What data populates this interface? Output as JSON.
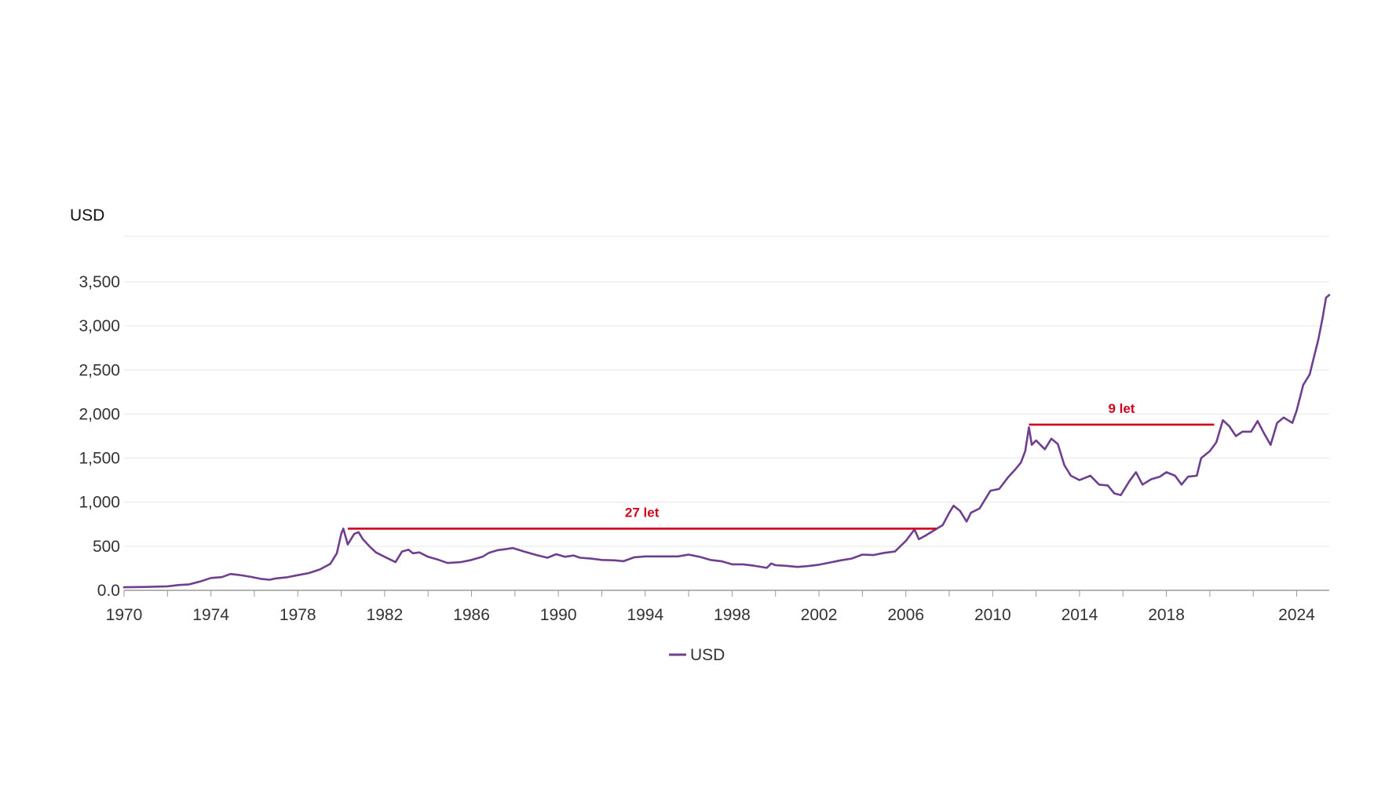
{
  "chart_data": {
    "type": "line",
    "y_unit_label": "USD",
    "ylim": [
      0,
      3500
    ],
    "y_ticks": [
      0,
      500,
      1000,
      1500,
      2000,
      2500,
      3000,
      3500
    ],
    "y_tick_labels": [
      "0.0",
      "500",
      "1,000",
      "1,500",
      "2,000",
      "2,500",
      "3,000",
      "3,500"
    ],
    "xlim": [
      1970,
      2025.5
    ],
    "x_ticks": [
      1970,
      1974,
      1978,
      1982,
      1986,
      1990,
      1994,
      1998,
      2002,
      2006,
      2010,
      2014,
      2018,
      2024
    ],
    "x_tick_labels": [
      "1970",
      "1974",
      "1978",
      "1982",
      "1986",
      "1990",
      "1994",
      "1998",
      "2002",
      "2006",
      "2010",
      "2014",
      "2018",
      "2024"
    ],
    "grid": true,
    "legend_position": "bottom-center",
    "series": [
      {
        "name": "USD",
        "color": "#6f3f8f",
        "points": [
          [
            1970.0,
            35
          ],
          [
            1971.0,
            38
          ],
          [
            1972.0,
            45
          ],
          [
            1972.5,
            60
          ],
          [
            1973.0,
            68
          ],
          [
            1973.5,
            100
          ],
          [
            1974.0,
            140
          ],
          [
            1974.5,
            150
          ],
          [
            1974.9,
            185
          ],
          [
            1975.3,
            175
          ],
          [
            1975.8,
            155
          ],
          [
            1976.3,
            130
          ],
          [
            1976.7,
            120
          ],
          [
            1977.0,
            135
          ],
          [
            1977.5,
            148
          ],
          [
            1978.0,
            172
          ],
          [
            1978.5,
            195
          ],
          [
            1979.0,
            235
          ],
          [
            1979.5,
            300
          ],
          [
            1979.8,
            420
          ],
          [
            1980.0,
            640
          ],
          [
            1980.1,
            700
          ],
          [
            1980.3,
            520
          ],
          [
            1980.6,
            640
          ],
          [
            1980.8,
            660
          ],
          [
            1981.0,
            580
          ],
          [
            1981.3,
            500
          ],
          [
            1981.6,
            430
          ],
          [
            1982.0,
            380
          ],
          [
            1982.5,
            320
          ],
          [
            1982.8,
            440
          ],
          [
            1983.1,
            460
          ],
          [
            1983.3,
            420
          ],
          [
            1983.6,
            430
          ],
          [
            1984.0,
            380
          ],
          [
            1984.5,
            345
          ],
          [
            1984.9,
            310
          ],
          [
            1985.5,
            320
          ],
          [
            1986.0,
            345
          ],
          [
            1986.5,
            380
          ],
          [
            1986.8,
            425
          ],
          [
            1987.2,
            455
          ],
          [
            1987.5,
            465
          ],
          [
            1987.9,
            480
          ],
          [
            1988.5,
            435
          ],
          [
            1989.0,
            400
          ],
          [
            1989.5,
            370
          ],
          [
            1989.9,
            410
          ],
          [
            1990.3,
            380
          ],
          [
            1990.7,
            395
          ],
          [
            1991.0,
            370
          ],
          [
            1991.5,
            360
          ],
          [
            1992.0,
            345
          ],
          [
            1992.6,
            340
          ],
          [
            1993.0,
            330
          ],
          [
            1993.5,
            375
          ],
          [
            1994.0,
            385
          ],
          [
            1994.5,
            385
          ],
          [
            1995.0,
            385
          ],
          [
            1995.5,
            385
          ],
          [
            1996.0,
            405
          ],
          [
            1996.5,
            380
          ],
          [
            1997.0,
            345
          ],
          [
            1997.5,
            330
          ],
          [
            1998.0,
            295
          ],
          [
            1998.5,
            295
          ],
          [
            1999.0,
            280
          ],
          [
            1999.6,
            255
          ],
          [
            1999.8,
            305
          ],
          [
            2000.0,
            285
          ],
          [
            2000.5,
            278
          ],
          [
            2001.0,
            265
          ],
          [
            2001.5,
            275
          ],
          [
            2002.0,
            290
          ],
          [
            2002.5,
            315
          ],
          [
            2003.0,
            340
          ],
          [
            2003.5,
            360
          ],
          [
            2004.0,
            405
          ],
          [
            2004.5,
            400
          ],
          [
            2005.0,
            425
          ],
          [
            2005.5,
            440
          ],
          [
            2006.0,
            560
          ],
          [
            2006.4,
            690
          ],
          [
            2006.6,
            580
          ],
          [
            2006.9,
            620
          ],
          [
            2007.3,
            680
          ],
          [
            2007.7,
            740
          ],
          [
            2008.0,
            880
          ],
          [
            2008.2,
            960
          ],
          [
            2008.5,
            900
          ],
          [
            2008.8,
            780
          ],
          [
            2009.0,
            880
          ],
          [
            2009.4,
            930
          ],
          [
            2009.9,
            1130
          ],
          [
            2010.3,
            1150
          ],
          [
            2010.7,
            1280
          ],
          [
            2011.0,
            1360
          ],
          [
            2011.3,
            1450
          ],
          [
            2011.5,
            1580
          ],
          [
            2011.67,
            1850
          ],
          [
            2011.8,
            1650
          ],
          [
            2012.0,
            1700
          ],
          [
            2012.4,
            1600
          ],
          [
            2012.7,
            1720
          ],
          [
            2013.0,
            1660
          ],
          [
            2013.3,
            1420
          ],
          [
            2013.6,
            1300
          ],
          [
            2014.0,
            1250
          ],
          [
            2014.5,
            1300
          ],
          [
            2014.9,
            1200
          ],
          [
            2015.3,
            1190
          ],
          [
            2015.6,
            1100
          ],
          [
            2015.9,
            1080
          ],
          [
            2016.3,
            1240
          ],
          [
            2016.6,
            1340
          ],
          [
            2016.9,
            1200
          ],
          [
            2017.3,
            1260
          ],
          [
            2017.7,
            1290
          ],
          [
            2018.0,
            1340
          ],
          [
            2018.4,
            1300
          ],
          [
            2018.7,
            1200
          ],
          [
            2019.0,
            1290
          ],
          [
            2019.4,
            1300
          ],
          [
            2019.6,
            1500
          ],
          [
            2020.0,
            1580
          ],
          [
            2020.3,
            1680
          ],
          [
            2020.6,
            1930
          ],
          [
            2020.9,
            1860
          ],
          [
            2021.2,
            1750
          ],
          [
            2021.5,
            1800
          ],
          [
            2021.9,
            1800
          ],
          [
            2022.2,
            1920
          ],
          [
            2022.5,
            1780
          ],
          [
            2022.8,
            1650
          ],
          [
            2023.1,
            1900
          ],
          [
            2023.4,
            1960
          ],
          [
            2023.8,
            1900
          ],
          [
            2024.0,
            2040
          ],
          [
            2024.3,
            2330
          ],
          [
            2024.6,
            2450
          ],
          [
            2024.8,
            2650
          ],
          [
            2025.0,
            2850
          ],
          [
            2025.2,
            3100
          ],
          [
            2025.35,
            3320
          ],
          [
            2025.5,
            3350
          ]
        ]
      }
    ],
    "annotations": [
      {
        "label": "27 let",
        "x_start": 1980.3,
        "x_end": 2007.4,
        "y": 700,
        "color": "#d0021b"
      },
      {
        "label": "9 let",
        "x_start": 2011.67,
        "x_end": 2020.2,
        "y": 1880,
        "color": "#d0021b"
      }
    ],
    "colors": {
      "grid": "#e6e6e6",
      "axis": "#9a9a9a",
      "series": "#6f3f8f",
      "annotation": "#d0021b"
    }
  }
}
